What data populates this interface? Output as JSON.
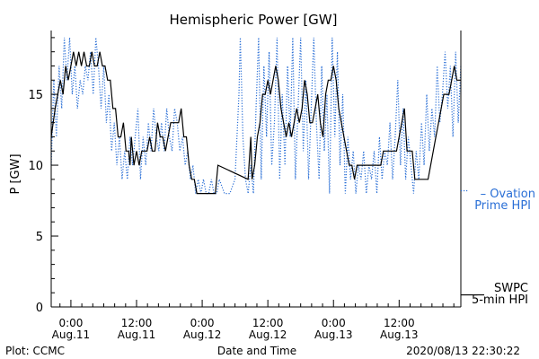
{
  "chart_data": {
    "type": "line",
    "title": "Hemispheric Power [GW]",
    "ylabel": "P [GW]",
    "xlabel": "Date and Time",
    "xlim": [
      -0.15,
      2.97
    ],
    "ylim": [
      0,
      19.5
    ],
    "yticks": [
      0,
      5,
      10,
      15
    ],
    "xticks": [
      {
        "x": 0.0,
        "line1": "0:00",
        "line2": "Aug.11"
      },
      {
        "x": 0.5,
        "line1": "12:00",
        "line2": "Aug.11"
      },
      {
        "x": 1.0,
        "line1": "0:00",
        "line2": "Aug.12"
      },
      {
        "x": 1.5,
        "line1": "12:00",
        "line2": "Aug.12"
      },
      {
        "x": 2.0,
        "line1": "0:00",
        "line2": "Aug.13"
      },
      {
        "x": 2.5,
        "line1": "12:00",
        "line2": "Aug.13"
      }
    ],
    "x_unit": "days since 0:00 Aug.11",
    "series": [
      {
        "name": "SWPC 5-min HPI",
        "legend_line1": "SWPC",
        "legend_line2": "5-min HPI",
        "color": "#000000",
        "style": "solid",
        "points": [
          [
            -0.15,
            12
          ],
          [
            -0.12,
            14
          ],
          [
            -0.1,
            15
          ],
          [
            -0.08,
            16
          ],
          [
            -0.06,
            15
          ],
          [
            -0.04,
            17
          ],
          [
            -0.02,
            16
          ],
          [
            0.0,
            17
          ],
          [
            0.02,
            18
          ],
          [
            0.04,
            17
          ],
          [
            0.06,
            18
          ],
          [
            0.08,
            17
          ],
          [
            0.1,
            18
          ],
          [
            0.12,
            17
          ],
          [
            0.14,
            17
          ],
          [
            0.16,
            18
          ],
          [
            0.18,
            17
          ],
          [
            0.2,
            17
          ],
          [
            0.22,
            18
          ],
          [
            0.24,
            17
          ],
          [
            0.26,
            17
          ],
          [
            0.28,
            16
          ],
          [
            0.3,
            16
          ],
          [
            0.32,
            14
          ],
          [
            0.34,
            14
          ],
          [
            0.36,
            12
          ],
          [
            0.38,
            12
          ],
          [
            0.4,
            13
          ],
          [
            0.42,
            11
          ],
          [
            0.44,
            11
          ],
          [
            0.45,
            10
          ],
          [
            0.46,
            12
          ],
          [
            0.48,
            10
          ],
          [
            0.5,
            11
          ],
          [
            0.52,
            10
          ],
          [
            0.54,
            11
          ],
          [
            0.56,
            11
          ],
          [
            0.58,
            11
          ],
          [
            0.6,
            12
          ],
          [
            0.62,
            11
          ],
          [
            0.64,
            11
          ],
          [
            0.66,
            13
          ],
          [
            0.68,
            12
          ],
          [
            0.7,
            12
          ],
          [
            0.72,
            11
          ],
          [
            0.74,
            12
          ],
          [
            0.76,
            13
          ],
          [
            0.78,
            13
          ],
          [
            0.8,
            13
          ],
          [
            0.82,
            13
          ],
          [
            0.84,
            14
          ],
          [
            0.86,
            12
          ],
          [
            0.88,
            12
          ],
          [
            0.9,
            10
          ],
          [
            0.92,
            9
          ],
          [
            0.94,
            9
          ],
          [
            0.96,
            8
          ],
          [
            0.98,
            8
          ],
          [
            1.0,
            8
          ],
          [
            1.02,
            8
          ],
          [
            1.04,
            8
          ],
          [
            1.06,
            8
          ],
          [
            1.08,
            8
          ],
          [
            1.1,
            8
          ],
          [
            1.12,
            10
          ],
          [
            1.35,
            9
          ],
          [
            1.37,
            12
          ],
          [
            1.38,
            9
          ],
          [
            1.4,
            10
          ],
          [
            1.42,
            12
          ],
          [
            1.44,
            13
          ],
          [
            1.46,
            15
          ],
          [
            1.48,
            15
          ],
          [
            1.5,
            16
          ],
          [
            1.52,
            15
          ],
          [
            1.54,
            16
          ],
          [
            1.56,
            17
          ],
          [
            1.58,
            16
          ],
          [
            1.6,
            14
          ],
          [
            1.62,
            13
          ],
          [
            1.64,
            12
          ],
          [
            1.66,
            13
          ],
          [
            1.68,
            12
          ],
          [
            1.7,
            13
          ],
          [
            1.72,
            14
          ],
          [
            1.74,
            13
          ],
          [
            1.76,
            14
          ],
          [
            1.78,
            16
          ],
          [
            1.8,
            15
          ],
          [
            1.82,
            13
          ],
          [
            1.84,
            13
          ],
          [
            1.86,
            14
          ],
          [
            1.88,
            15
          ],
          [
            1.9,
            13
          ],
          [
            1.92,
            12
          ],
          [
            1.94,
            15
          ],
          [
            1.96,
            16
          ],
          [
            1.98,
            16
          ],
          [
            2.0,
            17
          ],
          [
            2.02,
            16
          ],
          [
            2.04,
            14
          ],
          [
            2.06,
            13
          ],
          [
            2.08,
            12
          ],
          [
            2.1,
            11
          ],
          [
            2.12,
            10
          ],
          [
            2.14,
            10
          ],
          [
            2.16,
            9
          ],
          [
            2.18,
            10
          ],
          [
            2.2,
            10
          ],
          [
            2.22,
            10
          ],
          [
            2.24,
            10
          ],
          [
            2.26,
            10
          ],
          [
            2.28,
            10
          ],
          [
            2.3,
            10
          ],
          [
            2.32,
            10
          ],
          [
            2.34,
            10
          ],
          [
            2.36,
            10
          ],
          [
            2.38,
            11
          ],
          [
            2.4,
            11
          ],
          [
            2.42,
            11
          ],
          [
            2.44,
            11
          ],
          [
            2.46,
            11
          ],
          [
            2.48,
            11
          ],
          [
            2.5,
            12
          ],
          [
            2.52,
            13
          ],
          [
            2.54,
            14
          ],
          [
            2.56,
            11
          ],
          [
            2.58,
            11
          ],
          [
            2.6,
            11
          ],
          [
            2.62,
            9
          ],
          [
            2.64,
            9
          ],
          [
            2.66,
            9
          ],
          [
            2.68,
            9
          ],
          [
            2.7,
            9
          ],
          [
            2.72,
            9
          ],
          [
            2.74,
            10
          ],
          [
            2.76,
            11
          ],
          [
            2.78,
            12
          ],
          [
            2.8,
            13
          ],
          [
            2.82,
            14
          ],
          [
            2.84,
            15
          ],
          [
            2.86,
            15
          ],
          [
            2.88,
            15
          ],
          [
            2.9,
            16
          ],
          [
            2.92,
            17
          ],
          [
            2.94,
            16
          ],
          [
            2.97,
            16
          ]
        ]
      },
      {
        "name": "Ovation Prime HPI",
        "legend_line1": "– Ovation",
        "legend_line2": "Prime HPI",
        "color": "#2a6fd6",
        "style": "dotted",
        "points": [
          [
            -0.15,
            10
          ],
          [
            -0.13,
            16
          ],
          [
            -0.11,
            12
          ],
          [
            -0.09,
            17
          ],
          [
            -0.07,
            14
          ],
          [
            -0.05,
            19
          ],
          [
            -0.03,
            16
          ],
          [
            -0.01,
            19
          ],
          [
            0.01,
            15
          ],
          [
            0.03,
            17
          ],
          [
            0.05,
            14
          ],
          [
            0.07,
            16
          ],
          [
            0.09,
            15
          ],
          [
            0.11,
            17
          ],
          [
            0.13,
            16
          ],
          [
            0.15,
            18
          ],
          [
            0.17,
            15
          ],
          [
            0.19,
            19
          ],
          [
            0.21,
            17
          ],
          [
            0.23,
            14
          ],
          [
            0.25,
            17
          ],
          [
            0.27,
            13
          ],
          [
            0.29,
            15
          ],
          [
            0.31,
            11
          ],
          [
            0.33,
            13
          ],
          [
            0.35,
            10
          ],
          [
            0.37,
            12
          ],
          [
            0.39,
            9
          ],
          [
            0.41,
            11
          ],
          [
            0.43,
            9
          ],
          [
            0.45,
            12
          ],
          [
            0.47,
            10
          ],
          [
            0.49,
            12
          ],
          [
            0.51,
            14
          ],
          [
            0.53,
            9
          ],
          [
            0.55,
            12
          ],
          [
            0.57,
            10
          ],
          [
            0.59,
            13
          ],
          [
            0.61,
            11
          ],
          [
            0.63,
            14
          ],
          [
            0.65,
            12
          ],
          [
            0.67,
            11
          ],
          [
            0.69,
            13
          ],
          [
            0.71,
            11
          ],
          [
            0.73,
            14
          ],
          [
            0.75,
            12
          ],
          [
            0.77,
            11
          ],
          [
            0.79,
            14
          ],
          [
            0.81,
            13
          ],
          [
            0.83,
            11
          ],
          [
            0.85,
            12
          ],
          [
            0.87,
            10
          ],
          [
            0.89,
            11
          ],
          [
            0.91,
            9
          ],
          [
            0.93,
            10
          ],
          [
            0.95,
            8
          ],
          [
            0.97,
            9
          ],
          [
            0.99,
            8
          ],
          [
            1.01,
            9
          ],
          [
            1.03,
            8
          ],
          [
            1.05,
            8
          ],
          [
            1.07,
            9
          ],
          [
            1.09,
            8
          ],
          [
            1.11,
            8
          ],
          [
            1.13,
            9
          ],
          [
            1.17,
            8
          ],
          [
            1.21,
            8
          ],
          [
            1.25,
            9
          ],
          [
            1.28,
            15
          ],
          [
            1.29,
            19
          ],
          [
            1.31,
            12
          ],
          [
            1.33,
            9
          ],
          [
            1.35,
            8
          ],
          [
            1.37,
            10
          ],
          [
            1.39,
            8
          ],
          [
            1.41,
            14
          ],
          [
            1.43,
            19
          ],
          [
            1.45,
            9
          ],
          [
            1.47,
            17
          ],
          [
            1.49,
            12
          ],
          [
            1.51,
            18
          ],
          [
            1.53,
            10
          ],
          [
            1.55,
            13
          ],
          [
            1.57,
            19
          ],
          [
            1.59,
            9
          ],
          [
            1.61,
            15
          ],
          [
            1.63,
            10
          ],
          [
            1.65,
            17
          ],
          [
            1.67,
            12
          ],
          [
            1.69,
            19
          ],
          [
            1.71,
            9
          ],
          [
            1.73,
            14
          ],
          [
            1.75,
            19
          ],
          [
            1.77,
            11
          ],
          [
            1.79,
            16
          ],
          [
            1.81,
            9
          ],
          [
            1.83,
            14
          ],
          [
            1.85,
            19
          ],
          [
            1.87,
            13
          ],
          [
            1.89,
            9
          ],
          [
            1.91,
            17
          ],
          [
            1.93,
            11
          ],
          [
            1.95,
            15
          ],
          [
            1.97,
            8
          ],
          [
            1.99,
            19
          ],
          [
            2.01,
            12
          ],
          [
            2.03,
            18
          ],
          [
            2.05,
            10
          ],
          [
            2.07,
            15
          ],
          [
            2.09,
            8
          ],
          [
            2.11,
            12
          ],
          [
            2.13,
            9
          ],
          [
            2.15,
            11
          ],
          [
            2.17,
            8
          ],
          [
            2.19,
            10
          ],
          [
            2.21,
            9
          ],
          [
            2.23,
            11
          ],
          [
            2.25,
            8
          ],
          [
            2.27,
            10
          ],
          [
            2.29,
            9
          ],
          [
            2.31,
            11
          ],
          [
            2.33,
            8
          ],
          [
            2.35,
            12
          ],
          [
            2.37,
            9
          ],
          [
            2.39,
            11
          ],
          [
            2.41,
            10
          ],
          [
            2.43,
            13
          ],
          [
            2.45,
            9
          ],
          [
            2.47,
            12
          ],
          [
            2.49,
            16
          ],
          [
            2.51,
            10
          ],
          [
            2.53,
            14
          ],
          [
            2.55,
            9
          ],
          [
            2.57,
            12
          ],
          [
            2.59,
            10
          ],
          [
            2.61,
            8
          ],
          [
            2.63,
            11
          ],
          [
            2.65,
            9
          ],
          [
            2.67,
            13
          ],
          [
            2.69,
            10
          ],
          [
            2.71,
            15
          ],
          [
            2.73,
            11
          ],
          [
            2.75,
            14
          ],
          [
            2.77,
            12
          ],
          [
            2.79,
            17
          ],
          [
            2.81,
            13
          ],
          [
            2.83,
            15
          ],
          [
            2.85,
            18
          ],
          [
            2.87,
            14
          ],
          [
            2.89,
            17
          ],
          [
            2.91,
            12
          ],
          [
            2.93,
            18
          ],
          [
            2.95,
            13
          ],
          [
            2.97,
            17
          ]
        ]
      }
    ]
  },
  "footer": {
    "left": "Plot: CCMC",
    "right": "2020/08/13 22:30:22"
  },
  "colors": {
    "axis": "#000000",
    "swpc": "#000000",
    "ovation": "#2a6fd6"
  }
}
